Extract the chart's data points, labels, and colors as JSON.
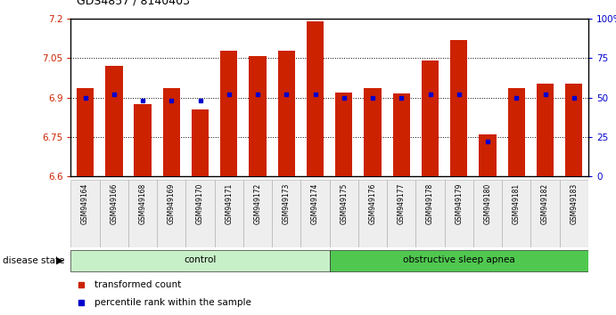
{
  "title": "GDS4857 / 8140403",
  "samples": [
    "GSM949164",
    "GSM949166",
    "GSM949168",
    "GSM949169",
    "GSM949170",
    "GSM949171",
    "GSM949172",
    "GSM949173",
    "GSM949174",
    "GSM949175",
    "GSM949176",
    "GSM949177",
    "GSM949178",
    "GSM949179",
    "GSM949180",
    "GSM949181",
    "GSM949182",
    "GSM949183"
  ],
  "bar_values": [
    6.935,
    7.02,
    6.875,
    6.935,
    6.855,
    7.08,
    7.06,
    7.08,
    7.19,
    6.92,
    6.935,
    6.915,
    7.04,
    7.12,
    6.76,
    6.935,
    6.955,
    6.955
  ],
  "percentile_values": [
    50,
    52,
    48,
    48,
    48,
    52,
    52,
    52,
    52,
    50,
    50,
    50,
    52,
    52,
    22,
    50,
    52,
    50
  ],
  "groups": [
    {
      "label": "control",
      "start": 0,
      "end": 8,
      "color": "#c8f0c8"
    },
    {
      "label": "obstructive sleep apnea",
      "start": 9,
      "end": 17,
      "color": "#50c850"
    }
  ],
  "group_label": "disease state",
  "ylim_left": [
    6.6,
    7.2
  ],
  "ylim_right": [
    0,
    100
  ],
  "yticks_left": [
    6.6,
    6.75,
    6.9,
    7.05,
    7.2
  ],
  "yticks_right": [
    0,
    25,
    50,
    75,
    100
  ],
  "ytick_labels_left": [
    "6.6",
    "6.75",
    "6.9",
    "7.05",
    "7.2"
  ],
  "ytick_labels_right": [
    "0",
    "25",
    "50",
    "75",
    "100%"
  ],
  "bar_color": "#cc2200",
  "dot_color": "#0000cc",
  "background_color": "#ffffff",
  "bar_width": 0.6,
  "legend_items": [
    {
      "label": "transformed count",
      "color": "#cc2200"
    },
    {
      "label": "percentile rank within the sample",
      "color": "#0000cc"
    }
  ],
  "grid_dotted_values": [
    6.75,
    6.9,
    7.05
  ]
}
